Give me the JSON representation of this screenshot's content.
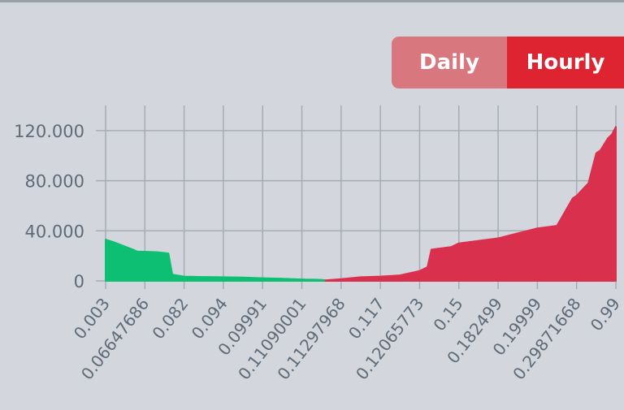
{
  "toggle": {
    "daily_label": "Daily",
    "hourly_label": "Hourly",
    "selected": "Hourly"
  },
  "colors": {
    "bids": "#0cbf73",
    "asks": "#d9304d",
    "grid": "#a7acb4",
    "axis_text": "#5f6b78",
    "background": "#d3d6dc"
  },
  "chart_data": {
    "type": "area",
    "title": "",
    "xlabel": "",
    "ylabel": "",
    "ylim": [
      0,
      140000
    ],
    "grid": true,
    "y_ticks": [
      {
        "value": 0,
        "label": "0"
      },
      {
        "value": 40000,
        "label": "40.000"
      },
      {
        "value": 80000,
        "label": "80.000"
      },
      {
        "value": 120000,
        "label": "120.000"
      }
    ],
    "x_tick_labels": [
      "0.003",
      "0.06647686",
      "0.082",
      "0.094",
      "0.09991",
      "0.11090001",
      "0.11297968",
      "0.117",
      "0.12065773",
      "0.15",
      "0.182499",
      "0.19999",
      "0.29871668",
      "0.99"
    ],
    "series": [
      {
        "x": [
          0,
          0.2,
          0.7,
          0.8,
          1.3,
          1.6,
          1.7,
          2.0,
          2.5,
          3.0,
          3.5,
          4.0,
          4.5,
          5.0,
          5.5,
          5.6
        ],
        "values": [
          33000,
          31000,
          25000,
          23500,
          23000,
          22000,
          5000,
          3500,
          3200,
          3000,
          2800,
          2200,
          1800,
          1200,
          900,
          500
        ]
      },
      {
        "x": [
          5.6,
          6.0,
          6.5,
          7.0,
          7.5,
          8.0,
          8.2,
          8.3,
          8.8,
          9.0,
          9.5,
          10.0,
          10.5,
          11.0,
          11.5,
          11.7,
          11.9,
          12.0,
          12.3,
          12.5,
          12.6,
          12.8,
          12.9,
          13.0
        ],
        "values": [
          500,
          1500,
          3000,
          3500,
          4500,
          8000,
          11000,
          25000,
          27000,
          30000,
          32000,
          34000,
          38000,
          42000,
          44000,
          55000,
          66000,
          68000,
          78000,
          102000,
          104000,
          114000,
          117000,
          123000
        ]
      }
    ]
  }
}
